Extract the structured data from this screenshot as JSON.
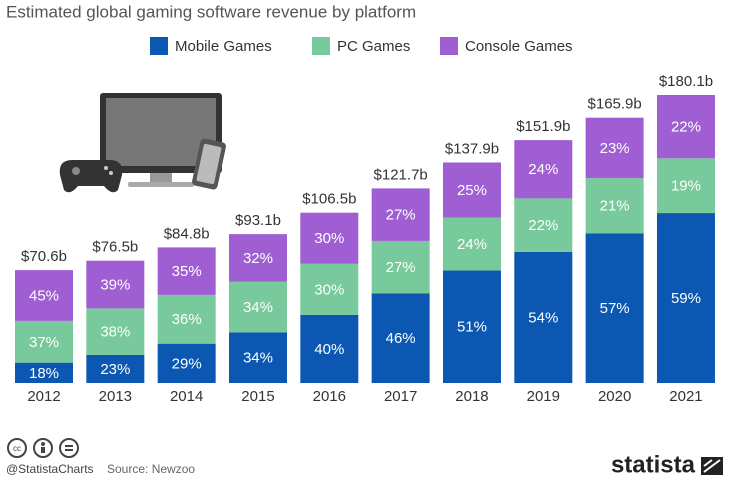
{
  "chart_data": {
    "type": "bar",
    "stacked": true,
    "title": "Estimated global gaming software revenue by platform",
    "categories": [
      "2012",
      "2013",
      "2014",
      "2015",
      "2016",
      "2017",
      "2018",
      "2019",
      "2020",
      "2021"
    ],
    "totals": {
      "values": [
        70.6,
        76.5,
        84.8,
        93.1,
        106.5,
        121.7,
        137.9,
        151.9,
        165.9,
        180.1
      ],
      "value_labels": [
        "$70.6b",
        "$76.5b",
        "$84.8b",
        "$93.1b",
        "$106.5b",
        "$121.7b",
        "$137.9b",
        "$151.9b",
        "$165.9b",
        "$180.1b"
      ]
    },
    "series": [
      {
        "name": "Mobile Games",
        "color": "#0b57b1",
        "values": [
          18,
          23,
          29,
          34,
          40,
          46,
          51,
          54,
          57,
          59
        ],
        "value_labels": [
          "18%",
          "23%",
          "29%",
          "34%",
          "40%",
          "46%",
          "51%",
          "54%",
          "57%",
          "59%"
        ]
      },
      {
        "name": "PC Games",
        "color": "#78c99b",
        "values": [
          37,
          38,
          36,
          34,
          30,
          27,
          24,
          22,
          21,
          19
        ],
        "value_labels": [
          "37%",
          "38%",
          "36%",
          "34%",
          "30%",
          "27%",
          "24%",
          "22%",
          "21%",
          "19%"
        ]
      },
      {
        "name": "Console Games",
        "color": "#9f5fd3",
        "values": [
          45,
          39,
          35,
          32,
          30,
          27,
          25,
          24,
          23,
          22
        ],
        "value_labels": [
          "45%",
          "39%",
          "35%",
          "32%",
          "30%",
          "27%",
          "25%",
          "24%",
          "23%",
          "22%"
        ]
      }
    ]
  },
  "footer": {
    "credit": "@StatistaCharts",
    "source": "Source: Newzoo",
    "logo": "statista"
  }
}
